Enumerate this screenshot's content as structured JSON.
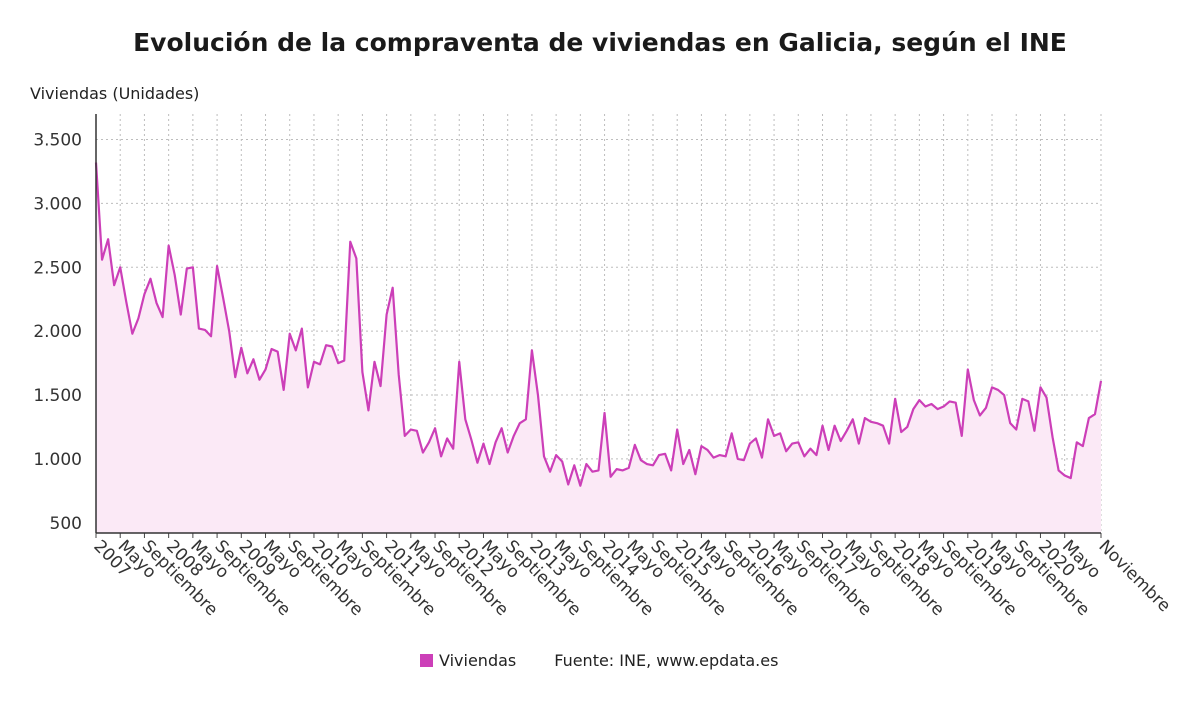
{
  "chart_data": {
    "type": "area",
    "title": "Evolución de la compraventa de viviendas en Galicia, según el INE",
    "ylabel": "Viviendas (Unidades)",
    "ylim": [
      420,
      3700
    ],
    "yticks": [
      500,
      1000,
      1500,
      2000,
      2500,
      3000,
      3500
    ],
    "ytick_labels": [
      "500",
      "1.000",
      "1.500",
      "2.000",
      "2.500",
      "3.000",
      "3.500"
    ],
    "x_start": "2007-01",
    "x_tick_labels": [
      {
        "label": "2007",
        "index": 0
      },
      {
        "label": "Mayo",
        "index": 4
      },
      {
        "label": "Septiembre",
        "index": 8
      },
      {
        "label": "2008",
        "index": 12
      },
      {
        "label": "Mayo",
        "index": 16
      },
      {
        "label": "Septiembre",
        "index": 20
      },
      {
        "label": "2009",
        "index": 24
      },
      {
        "label": "Mayo",
        "index": 28
      },
      {
        "label": "Septiembre",
        "index": 32
      },
      {
        "label": "2010",
        "index": 36
      },
      {
        "label": "Mayo",
        "index": 40
      },
      {
        "label": "Septiembre",
        "index": 44
      },
      {
        "label": "2011",
        "index": 48
      },
      {
        "label": "Mayo",
        "index": 52
      },
      {
        "label": "Septiembre",
        "index": 56
      },
      {
        "label": "2012",
        "index": 60
      },
      {
        "label": "Mayo",
        "index": 64
      },
      {
        "label": "Septiembre",
        "index": 68
      },
      {
        "label": "2013",
        "index": 72
      },
      {
        "label": "Mayo",
        "index": 76
      },
      {
        "label": "Septiembre",
        "index": 80
      },
      {
        "label": "2014",
        "index": 84
      },
      {
        "label": "Mayo",
        "index": 88
      },
      {
        "label": "Septiembre",
        "index": 92
      },
      {
        "label": "2015",
        "index": 96
      },
      {
        "label": "Mayo",
        "index": 100
      },
      {
        "label": "Septiembre",
        "index": 104
      },
      {
        "label": "2016",
        "index": 108
      },
      {
        "label": "Mayo",
        "index": 112
      },
      {
        "label": "Septiembre",
        "index": 116
      },
      {
        "label": "2017",
        "index": 120
      },
      {
        "label": "Mayo",
        "index": 124
      },
      {
        "label": "Septiembre",
        "index": 128
      },
      {
        "label": "2018",
        "index": 132
      },
      {
        "label": "Mayo",
        "index": 136
      },
      {
        "label": "Septiembre",
        "index": 140
      },
      {
        "label": "2019",
        "index": 144
      },
      {
        "label": "Mayo",
        "index": 148
      },
      {
        "label": "Septiembre",
        "index": 152
      },
      {
        "label": "2020",
        "index": 156
      },
      {
        "label": "Mayo",
        "index": 160
      },
      {
        "label": "Noviembre",
        "index": 166
      }
    ],
    "grid": true,
    "legend_position": "bottom",
    "series": [
      {
        "name": "Viviendas",
        "color": "#cc3fb8",
        "fill": "#fbe9f6",
        "values": [
          3320,
          2560,
          2720,
          2360,
          2500,
          2230,
          1980,
          2100,
          2290,
          2410,
          2220,
          2110,
          2670,
          2440,
          2130,
          2490,
          2500,
          2020,
          2010,
          1960,
          2510,
          2260,
          2000,
          1640,
          1870,
          1670,
          1780,
          1620,
          1700,
          1860,
          1840,
          1540,
          1980,
          1850,
          2020,
          1560,
          1760,
          1740,
          1890,
          1880,
          1750,
          1770,
          2700,
          2570,
          1680,
          1380,
          1760,
          1570,
          2130,
          2340,
          1660,
          1180,
          1230,
          1220,
          1050,
          1130,
          1240,
          1020,
          1160,
          1080,
          1760,
          1310,
          1150,
          970,
          1120,
          960,
          1130,
          1240,
          1050,
          1180,
          1280,
          1310,
          1850,
          1500,
          1020,
          900,
          1030,
          980,
          800,
          950,
          790,
          960,
          900,
          910,
          1360,
          860,
          920,
          910,
          930,
          1110,
          990,
          960,
          950,
          1030,
          1040,
          910,
          1230,
          960,
          1070,
          880,
          1100,
          1070,
          1010,
          1030,
          1020,
          1200,
          1000,
          990,
          1120,
          1160,
          1010,
          1310,
          1180,
          1200,
          1060,
          1120,
          1130,
          1020,
          1080,
          1030,
          1260,
          1070,
          1260,
          1140,
          1220,
          1310,
          1120,
          1320,
          1290,
          1280,
          1260,
          1120,
          1470,
          1210,
          1250,
          1390,
          1460,
          1410,
          1430,
          1390,
          1410,
          1450,
          1440,
          1180,
          1700,
          1460,
          1340,
          1400,
          1560,
          1540,
          1500,
          1280,
          1230,
          1470,
          1450,
          1220,
          1560,
          1480,
          1170,
          910,
          870,
          850,
          1130,
          1100,
          1320,
          1350,
          1610
        ]
      }
    ],
    "source": "Fuente: INE, www.epdata.es"
  }
}
